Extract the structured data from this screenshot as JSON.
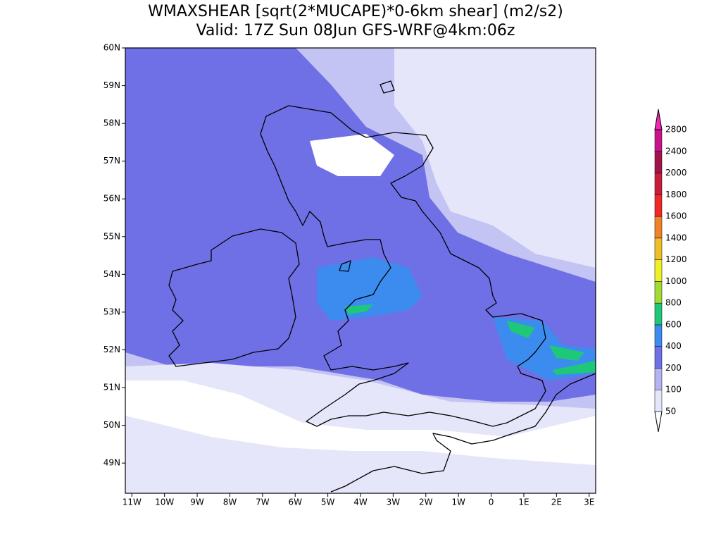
{
  "title": "WMAXSHEAR [sqrt(2*MUCAPE)*0-6km shear] (m2/s2)",
  "subtitle": "Valid: 17Z Sun 08Jun GFS-WRF@4km:06z",
  "map": {
    "lon_range": [
      -11.2,
      3.2
    ],
    "lat_range": [
      48.2,
      60
    ]
  },
  "lat_ticks": [
    {
      "value": 60,
      "label": "60N"
    },
    {
      "value": 59,
      "label": "59N"
    },
    {
      "value": 58,
      "label": "58N"
    },
    {
      "value": 57,
      "label": "57N"
    },
    {
      "value": 56,
      "label": "56N"
    },
    {
      "value": 55,
      "label": "55N"
    },
    {
      "value": 54,
      "label": "54N"
    },
    {
      "value": 53,
      "label": "53N"
    },
    {
      "value": 52,
      "label": "52N"
    },
    {
      "value": 51,
      "label": "51N"
    },
    {
      "value": 50,
      "label": "50N"
    },
    {
      "value": 49,
      "label": "49N"
    }
  ],
  "lon_ticks": [
    {
      "value": -11,
      "label": "11W"
    },
    {
      "value": -10,
      "label": "10W"
    },
    {
      "value": -9,
      "label": "9W"
    },
    {
      "value": -8,
      "label": "8W"
    },
    {
      "value": -7,
      "label": "7W"
    },
    {
      "value": -6,
      "label": "6W"
    },
    {
      "value": -5,
      "label": "5W"
    },
    {
      "value": -4,
      "label": "4W"
    },
    {
      "value": -3,
      "label": "3W"
    },
    {
      "value": -2,
      "label": "2W"
    },
    {
      "value": -1,
      "label": "1W"
    },
    0,
    {
      "value": 1,
      "label": "1E"
    },
    {
      "value": 2,
      "label": "2E"
    },
    {
      "value": 3,
      "label": "3E"
    }
  ],
  "colorbar": {
    "levels": [
      50,
      100,
      200,
      400,
      600,
      800,
      1000,
      1200,
      1400,
      1600,
      1800,
      2000,
      2400,
      2800
    ],
    "colors": [
      "#ffffff",
      "#e6e6fa",
      "#b4b4f0",
      "#7070e6",
      "#3c8cf0",
      "#1ec878",
      "#a0dc32",
      "#f0f028",
      "#f0be28",
      "#f08228",
      "#f02828",
      "#c81e3c",
      "#a0144b",
      "#c8148c",
      "#f028b4"
    ]
  }
}
